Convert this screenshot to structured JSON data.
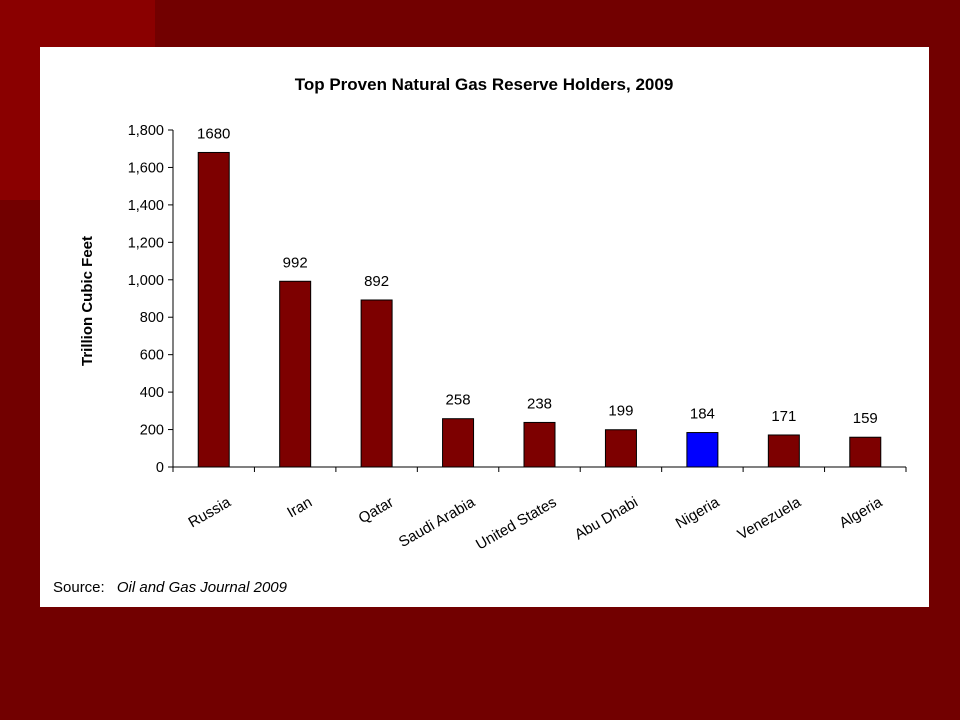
{
  "slide": {
    "background_color": "#720000",
    "panel_color": "#ffffff"
  },
  "chart_data": {
    "type": "bar",
    "title": "Top Proven Natural Gas Reserve Holders, 2009",
    "xlabel": "",
    "ylabel": "Trillion Cubic Feet",
    "ylim": [
      0,
      1800
    ],
    "yticks": [
      0,
      200,
      400,
      600,
      800,
      1000,
      1200,
      1400,
      1600,
      1800
    ],
    "ytick_labels": [
      "0",
      "200",
      "400",
      "600",
      "800",
      "1,000",
      "1,200",
      "1,400",
      "1,600",
      "1,800"
    ],
    "grid": false,
    "legend": "none",
    "categories": [
      "Russia",
      "Iran",
      "Qatar",
      "Saudi Arabia",
      "United States",
      "Abu Dhabi",
      "Nigeria",
      "Venezuela",
      "Algeria"
    ],
    "values": [
      1680,
      992,
      892,
      258,
      238,
      199,
      184,
      171,
      159
    ],
    "data_labels": [
      "1680",
      "992",
      "892",
      "258",
      "238",
      "199",
      "184",
      "171",
      "159"
    ],
    "bar_color": "#7d0000",
    "highlight_category": "Nigeria",
    "highlight_color": "#0000ff"
  },
  "source": {
    "prefix": "Source:",
    "publication": "Oil and Gas Journal 2009"
  }
}
